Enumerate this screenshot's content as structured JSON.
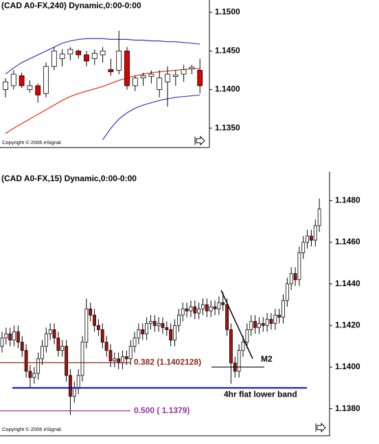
{
  "chart_data": [
    {
      "type": "candlestick",
      "title": "(CAD A0-FX,240) Dynamic,0:00-0:00",
      "copyright": "Copyright © 2006 eSignal.",
      "ylim": [
        1.1325,
        1.1516
      ],
      "yticks": [
        {
          "value": 1.15,
          "label": "1.1500"
        },
        {
          "value": 1.145,
          "label": "1.1450"
        },
        {
          "value": 1.14,
          "label": "1.1400"
        },
        {
          "value": 1.135,
          "label": "1.1350"
        }
      ],
      "up_color": "#ffffff",
      "down_color": "#dd0000",
      "open": [
        1.14,
        1.1405,
        1.1418,
        1.14,
        1.1405,
        1.1395,
        1.143,
        1.144,
        1.1446,
        1.145,
        1.1445,
        1.144,
        1.1445,
        1.1426,
        1.1425,
        1.145,
        1.1405,
        1.1415,
        1.1417,
        1.14,
        1.141,
        1.1417,
        1.142,
        1.1427,
        1.1425
      ],
      "high": [
        1.1415,
        1.1425,
        1.1422,
        1.1412,
        1.1408,
        1.1435,
        1.1455,
        1.1452,
        1.1455,
        1.1452,
        1.145,
        1.1452,
        1.1455,
        1.144,
        1.1476,
        1.1455,
        1.1418,
        1.1422,
        1.1425,
        1.1425,
        1.143,
        1.1425,
        1.1432,
        1.1432,
        1.144
      ],
      "low": [
        1.139,
        1.14,
        1.1402,
        1.1396,
        1.1383,
        1.139,
        1.1425,
        1.143,
        1.1438,
        1.144,
        1.143,
        1.1432,
        1.1435,
        1.1418,
        1.142,
        1.14,
        1.1398,
        1.1405,
        1.1408,
        1.139,
        1.1378,
        1.1405,
        1.141,
        1.142,
        1.1395
      ],
      "close": [
        1.141,
        1.142,
        1.1405,
        1.1405,
        1.1393,
        1.143,
        1.145,
        1.1446,
        1.1452,
        1.1445,
        1.1437,
        1.1447,
        1.145,
        1.1423,
        1.145,
        1.1405,
        1.1415,
        1.1418,
        1.142,
        1.1415,
        1.142,
        1.1419,
        1.1426,
        1.1429,
        1.1405
      ],
      "bands": [
        {
          "color": "#3333cc",
          "values": [
            1.142,
            1.1428,
            1.1435,
            1.144,
            1.1445,
            1.145,
            1.1455,
            1.146,
            1.1463,
            1.1465,
            1.1466,
            1.1466,
            1.1466,
            1.1465,
            1.1465,
            1.1465,
            1.1464,
            1.1464,
            1.1463,
            1.1463,
            1.1462,
            1.1462,
            1.1461,
            1.146,
            1.1459
          ]
        },
        {
          "color": "#ee2200",
          "values": [
            1.1343,
            1.135,
            1.1356,
            1.1362,
            1.1368,
            1.1374,
            1.138,
            1.1386,
            1.1391,
            1.1395,
            1.1398,
            1.1401,
            1.1404,
            1.1408,
            1.1412,
            1.1415,
            1.1418,
            1.142,
            1.1422,
            1.1423,
            1.1424,
            1.1425,
            1.1426,
            1.1427,
            1.1427
          ]
        },
        {
          "color": "#3333cc",
          "values": [
            null,
            null,
            null,
            null,
            null,
            null,
            null,
            null,
            null,
            null,
            null,
            null,
            1.1335,
            1.135,
            1.1362,
            1.137,
            1.1376,
            1.138,
            1.1383,
            1.1386,
            1.1388,
            1.139,
            1.1391,
            1.1392,
            1.1393
          ]
        }
      ]
    },
    {
      "type": "candlestick",
      "title": "(CAD A0-FX,15) Dynamic,0:00-0:00",
      "copyright": "Copyright © 2006 eSignal.",
      "ylim": [
        1.1367,
        1.1494
      ],
      "yticks": [
        {
          "value": 1.148,
          "label": "1.1480"
        },
        {
          "value": 1.146,
          "label": "1.1460"
        },
        {
          "value": 1.144,
          "label": "1.1440"
        },
        {
          "value": 1.142,
          "label": "1.1420"
        },
        {
          "value": 1.14,
          "label": "1.1400"
        },
        {
          "value": 1.138,
          "label": "1.1380"
        }
      ],
      "up_color": "#ffffff",
      "down_color": "#aa1111",
      "open": [
        1.141,
        1.1414,
        1.1416,
        1.1413,
        1.1417,
        1.1412,
        1.1408,
        1.1398,
        1.1395,
        1.1397,
        1.1404,
        1.141,
        1.1416,
        1.1418,
        1.1414,
        1.1408,
        1.141,
        1.1396,
        1.1386,
        1.139,
        1.1396,
        1.1412,
        1.1428,
        1.1425,
        1.142,
        1.1418,
        1.1412,
        1.1408,
        1.1403,
        1.1404,
        1.1402,
        1.1405,
        1.1404,
        1.141,
        1.1414,
        1.1418,
        1.1416,
        1.1421,
        1.1422,
        1.142,
        1.1421,
        1.1419,
        1.1418,
        1.1413,
        1.142,
        1.1425,
        1.1428,
        1.1427,
        1.1429,
        1.1426,
        1.1428,
        1.143,
        1.1427,
        1.1429,
        1.1428,
        1.1431,
        1.143,
        1.1418,
        1.1402,
        1.1398,
        1.1408,
        1.1412,
        1.1418,
        1.1422,
        1.1419,
        1.1421,
        1.142,
        1.1423,
        1.1421,
        1.1425,
        1.1424,
        1.1432,
        1.144,
        1.1445,
        1.1442,
        1.1455,
        1.146,
        1.1463,
        1.1461,
        1.1468
      ],
      "high": [
        1.1417,
        1.1419,
        1.1419,
        1.142,
        1.142,
        1.1415,
        1.1411,
        1.1401,
        1.14,
        1.1407,
        1.1413,
        1.1419,
        1.1421,
        1.1421,
        1.1417,
        1.1413,
        1.1413,
        1.1399,
        1.1393,
        1.1399,
        1.1415,
        1.1433,
        1.1431,
        1.1428,
        1.1423,
        1.1421,
        1.1415,
        1.1411,
        1.1407,
        1.1407,
        1.1408,
        1.1408,
        1.1413,
        1.1417,
        1.1421,
        1.1421,
        1.1424,
        1.1425,
        1.1425,
        1.1424,
        1.1424,
        1.1422,
        1.1421,
        1.1423,
        1.1428,
        1.1431,
        1.1431,
        1.1432,
        1.1432,
        1.1431,
        1.1433,
        1.1433,
        1.1432,
        1.1432,
        1.1434,
        1.1436,
        1.1433,
        1.1421,
        1.1405,
        1.1411,
        1.1415,
        1.1421,
        1.1425,
        1.1425,
        1.1424,
        1.1424,
        1.1426,
        1.1426,
        1.1428,
        1.1428,
        1.1435,
        1.1443,
        1.1448,
        1.1448,
        1.1458,
        1.1463,
        1.1466,
        1.1466,
        1.1471,
        1.1481
      ],
      "low": [
        1.1407,
        1.1411,
        1.141,
        1.141,
        1.1409,
        1.1405,
        1.1395,
        1.139,
        1.1392,
        1.1394,
        1.1401,
        1.1407,
        1.1413,
        1.1411,
        1.1405,
        1.1405,
        1.1393,
        1.1377,
        1.1383,
        1.1387,
        1.1393,
        1.1409,
        1.1422,
        1.1417,
        1.1415,
        1.1409,
        1.1405,
        1.14,
        1.14,
        1.1399,
        1.1399,
        1.1401,
        1.1401,
        1.1407,
        1.1411,
        1.1413,
        1.1413,
        1.1418,
        1.1417,
        1.1417,
        1.1416,
        1.1415,
        1.141,
        1.141,
        1.1417,
        1.1422,
        1.1424,
        1.1424,
        1.1423,
        1.1423,
        1.1425,
        1.1424,
        1.1424,
        1.1425,
        1.1425,
        1.1427,
        1.1415,
        1.1392,
        1.1395,
        1.1395,
        1.1405,
        1.1409,
        1.1415,
        1.1416,
        1.1416,
        1.1417,
        1.1417,
        1.1418,
        1.1418,
        1.1421,
        1.1421,
        1.1429,
        1.1437,
        1.1439,
        1.1439,
        1.1452,
        1.1457,
        1.1458,
        1.1458,
        1.1465
      ],
      "close": [
        1.1414,
        1.1416,
        1.1413,
        1.1417,
        1.1412,
        1.1408,
        1.1398,
        1.1395,
        1.1397,
        1.1404,
        1.141,
        1.1416,
        1.1418,
        1.1414,
        1.1408,
        1.141,
        1.1396,
        1.1386,
        1.139,
        1.1396,
        1.1412,
        1.1428,
        1.1425,
        1.142,
        1.1418,
        1.1412,
        1.1408,
        1.1403,
        1.1404,
        1.1402,
        1.1405,
        1.1404,
        1.141,
        1.1414,
        1.1418,
        1.1416,
        1.1421,
        1.1422,
        1.142,
        1.1421,
        1.1419,
        1.1418,
        1.1413,
        1.142,
        1.1425,
        1.1428,
        1.1427,
        1.1429,
        1.1426,
        1.1428,
        1.143,
        1.1427,
        1.1429,
        1.1428,
        1.1431,
        1.143,
        1.1418,
        1.1402,
        1.1398,
        1.1408,
        1.1412,
        1.1418,
        1.1422,
        1.1419,
        1.1421,
        1.142,
        1.1423,
        1.1421,
        1.1425,
        1.1424,
        1.1432,
        1.144,
        1.1445,
        1.1442,
        1.1455,
        1.146,
        1.1463,
        1.1461,
        1.1468,
        1.1476
      ],
      "hlines": [
        {
          "label": "0.382 (1.1402128)",
          "value": 1.1402128,
          "color": "#8b2a1a"
        },
        {
          "label": "0.500 ( 1.1379)",
          "value": 1.1379,
          "color": "#993399"
        },
        {
          "label": "4hr flat lower band",
          "value": 1.139,
          "color": "#0000cc"
        },
        {
          "label": "M2",
          "value": 1.14,
          "color": "#000000"
        }
      ],
      "trend_line": [
        1.1437,
        1.1404
      ]
    }
  ]
}
